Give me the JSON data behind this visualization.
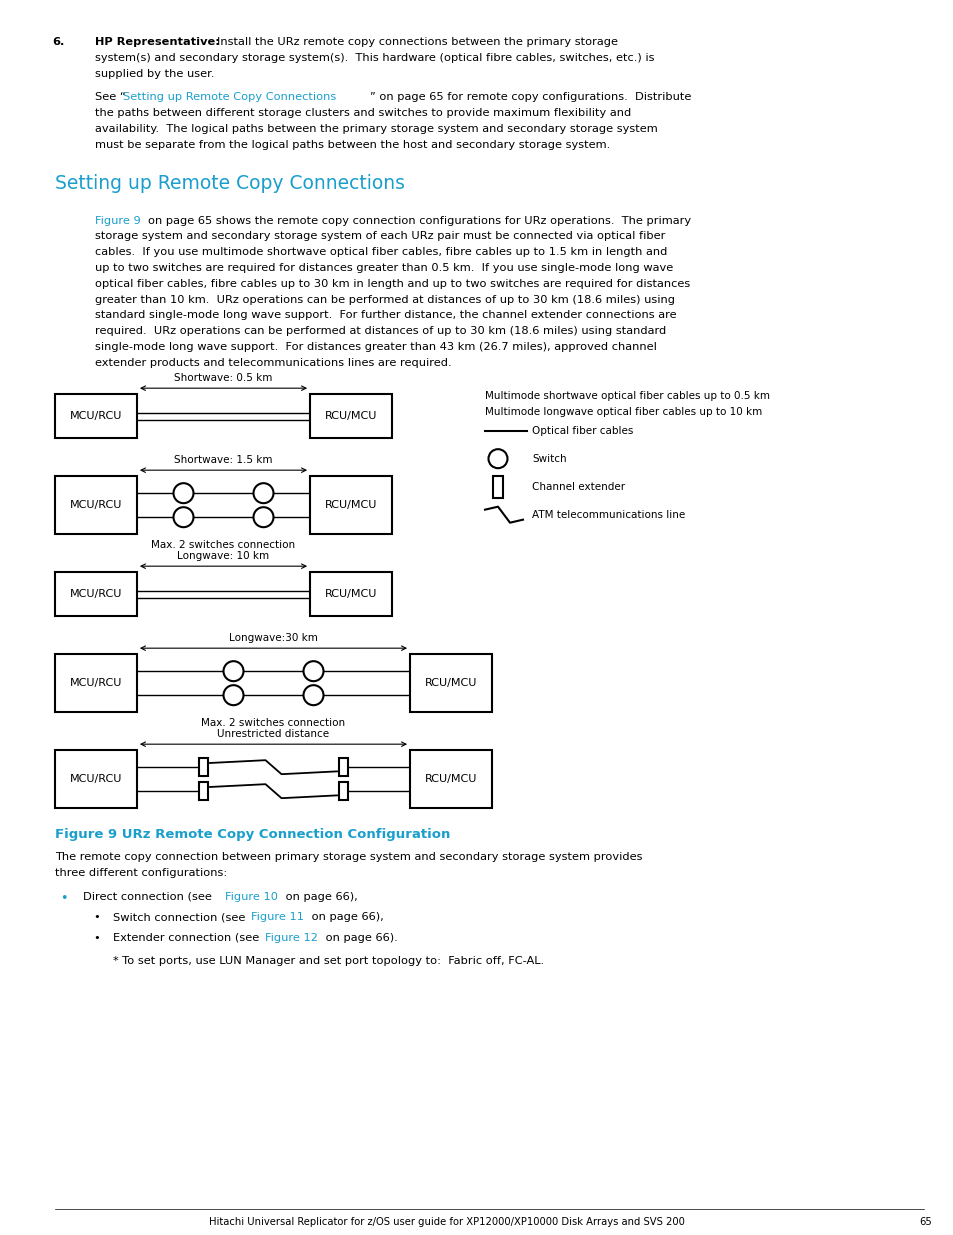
{
  "bg_color": "#ffffff",
  "text_color": "#000000",
  "blue_color": "#1a9fcc",
  "page_width": 9.54,
  "page_height": 12.35,
  "body_font_size": 8.2,
  "small_font_size": 7.5,
  "title_font_size": 13.5,
  "figure_title_size": 9.5,
  "footer_font_size": 7.2,
  "section_heading": "Setting up Remote Copy Connections",
  "figure_caption": "Figure 9 URz Remote Copy Connection Configuration",
  "footer_text": "Hitachi Universal Replicator for z/OS user guide for XP12000/XP10000 Disk Arrays and SVS 200",
  "page_number": "65"
}
